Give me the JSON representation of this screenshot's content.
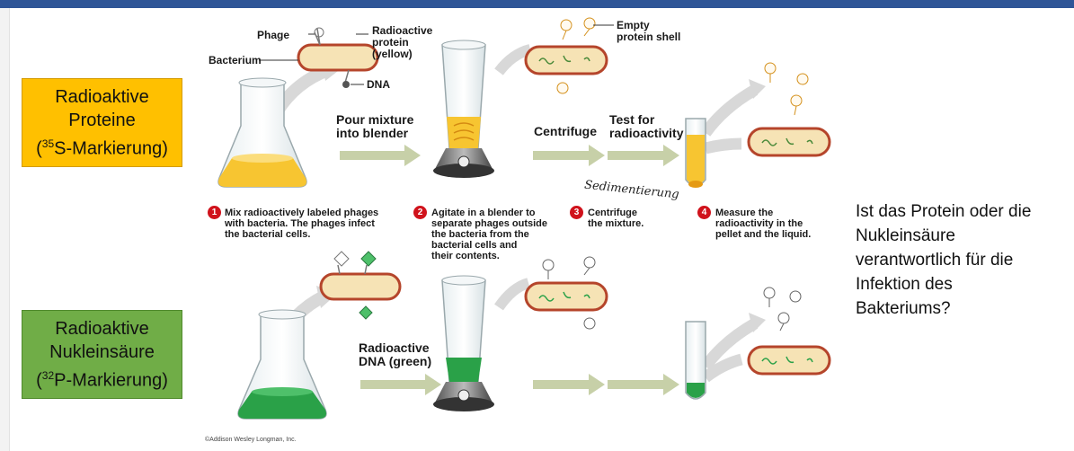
{
  "boxes": {
    "protein": {
      "line1": "Radioaktive",
      "line2": "Proteine",
      "line3_sup": "35",
      "line3_rest": "S-Markierung)",
      "line3_open": "(",
      "color": "#ffc000"
    },
    "nucleic": {
      "line1": "Radioaktive",
      "line2": "Nukleinsäure",
      "line3_sup": "32",
      "line3_rest": "P-Markierung)",
      "line3_open": "(",
      "color": "#70ad47"
    }
  },
  "labels": {
    "phage": "Phage",
    "bacterium": "Bacterium",
    "radioactive_protein": [
      "Radioactive",
      "protein",
      "(yellow)"
    ],
    "dna": "DNA",
    "empty_shell": [
      "Empty",
      "protein shell"
    ],
    "pour": [
      "Pour mixture",
      "into blender"
    ],
    "centrifuge": "Centrifuge",
    "test": [
      "Test for",
      "radioactivity"
    ],
    "radioactive_dna": [
      "Radioactive",
      "DNA (green)"
    ],
    "handwritten": "Sedimentierung"
  },
  "steps": [
    {
      "num": "1",
      "lines": [
        "Mix radioactively labeled phages",
        "with bacteria. The phages infect",
        "the bacterial cells."
      ]
    },
    {
      "num": "2",
      "lines": [
        "Agitate in a blender to",
        "separate phages outside",
        "the bacteria from the",
        "bacterial cells and",
        "their contents."
      ]
    },
    {
      "num": "3",
      "lines": [
        "Centrifuge",
        "the mixture."
      ]
    },
    {
      "num": "4",
      "lines": [
        "Measure the",
        "radioactivity in the",
        "pellet and the liquid."
      ]
    }
  ],
  "question": [
    "Ist das Protein oder die",
    "Nukleinsäure",
    "verantwortlich für die",
    "Infektion des",
    "Bakteriums?"
  ],
  "credit": "©Addison Wesley Longman, Inc.",
  "colors": {
    "yellow_liquid": "#f7c531",
    "green_liquid": "#2aa148",
    "bacterium_fill": "#f6e3b5",
    "bacterium_border": "#b5452b",
    "arrow": "#c7d0a8",
    "header": "#2f5597"
  }
}
